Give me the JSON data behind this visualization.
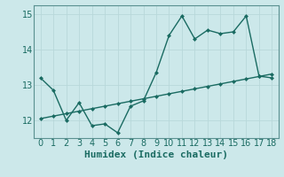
{
  "xlabel": "Humidex (Indice chaleur)",
  "background_color": "#cce8ea",
  "line_color": "#1a6b62",
  "grid_color": "#b8d8da",
  "x_data": [
    0,
    1,
    2,
    3,
    4,
    5,
    6,
    7,
    8,
    9,
    10,
    11,
    12,
    13,
    14,
    15,
    16,
    17,
    18
  ],
  "y_main": [
    13.2,
    12.85,
    12.0,
    12.5,
    11.85,
    11.9,
    11.65,
    12.4,
    12.55,
    13.35,
    14.4,
    14.95,
    14.3,
    14.55,
    14.45,
    14.5,
    14.95,
    13.25,
    13.2
  ],
  "y_trend": [
    12.05,
    12.12,
    12.19,
    12.26,
    12.33,
    12.4,
    12.47,
    12.54,
    12.61,
    12.68,
    12.75,
    12.82,
    12.89,
    12.96,
    13.03,
    13.1,
    13.17,
    13.24,
    13.31
  ],
  "ylim": [
    11.5,
    15.25
  ],
  "xlim": [
    -0.5,
    18.5
  ],
  "yticks": [
    12,
    13,
    14,
    15
  ],
  "xticks": [
    0,
    1,
    2,
    3,
    4,
    5,
    6,
    7,
    8,
    9,
    10,
    11,
    12,
    13,
    14,
    15,
    16,
    17,
    18
  ],
  "marker": "D",
  "markersize": 2.5,
  "linewidth": 1.0,
  "xlabel_fontsize": 8,
  "tick_fontsize": 7
}
